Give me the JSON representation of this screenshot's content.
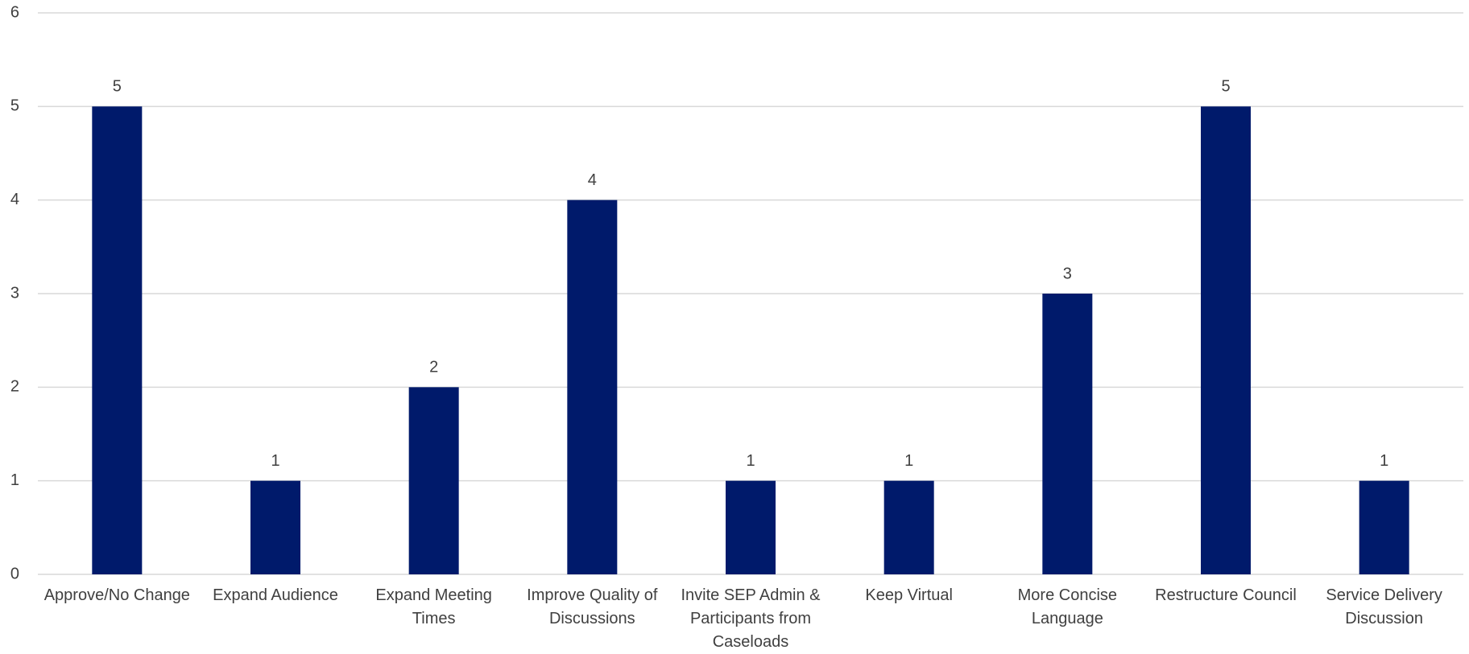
{
  "chart_data": {
    "type": "bar",
    "categories": [
      "Approve/No Change",
      "Expand Audience",
      "Expand Meeting Times",
      "Improve Quality of Discussions",
      "Invite SEP Admin & Participants from Caseloads",
      "Keep Virtual",
      "More Concise Language",
      "Restructure Council",
      "Service Delivery Discussion"
    ],
    "values": [
      5,
      1,
      2,
      4,
      1,
      1,
      3,
      5,
      1
    ],
    "color": "#001a6b",
    "ylim": [
      0,
      6
    ],
    "yticks": [
      0,
      1,
      2,
      3,
      4,
      5,
      6
    ],
    "grid": true
  }
}
